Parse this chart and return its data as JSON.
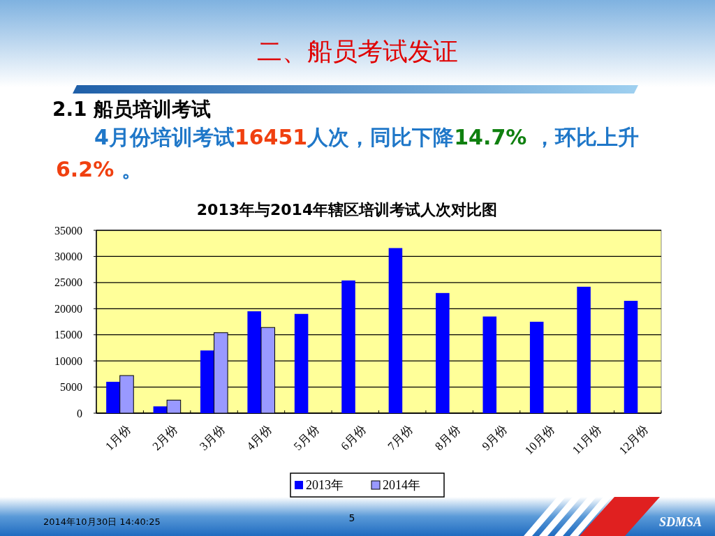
{
  "chart_data": {
    "type": "bar",
    "title": "2013年与2014年辖区培训考试人次对比图",
    "categories": [
      "1月份",
      "2月份",
      "3月份",
      "4月份",
      "5月份",
      "6月份",
      "7月份",
      "8月份",
      "9月份",
      "10月份",
      "11月份",
      "12月份"
    ],
    "series": [
      {
        "name": "2013年",
        "color": "#0000ff",
        "values": [
          6000,
          1300,
          12000,
          19500,
          19000,
          25400,
          31600,
          23000,
          18500,
          17500,
          24200,
          21500
        ]
      },
      {
        "name": "2014年",
        "color": "#9999ff",
        "values": [
          7200,
          2500,
          15400,
          16400,
          null,
          null,
          null,
          null,
          null,
          null,
          null,
          null
        ]
      }
    ],
    "ylim": [
      0,
      35000
    ],
    "yticks": [
      0,
      5000,
      10000,
      15000,
      20000,
      25000,
      30000,
      35000
    ],
    "grid": "y",
    "legend": "bottom",
    "annotations": [
      "二、船员考试发证",
      "2.1 船员培训考试",
      "4月份培训考试16451人次，同比下降14.7% ，环比上升6.2% 。",
      "2014年10月30日  14:40:25",
      "5",
      "SDMSA"
    ]
  }
}
